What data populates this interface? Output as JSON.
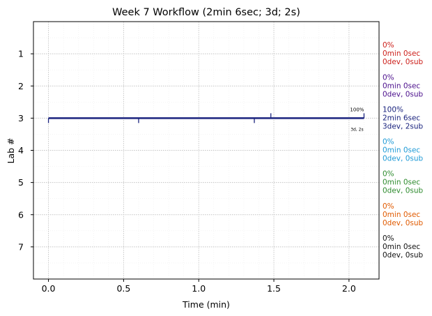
{
  "chart_data": {
    "type": "timeline",
    "title": "Week 7 Workflow (2min 6sec; 3d; 2s)",
    "xlabel": "Time (min)",
    "ylabel": "Lab #",
    "xlim": [
      -0.1,
      2.2
    ],
    "ylim": [
      8,
      0
    ],
    "x_ticks": [
      0.0,
      0.5,
      1.0,
      1.5,
      2.0
    ],
    "x_tick_labels": [
      "0.0",
      "0.5",
      "1.0",
      "1.5",
      "2.0"
    ],
    "y_ticks": [
      1,
      2,
      3,
      4,
      5,
      6,
      7
    ],
    "y_tick_labels": [
      "1",
      "2",
      "3",
      "4",
      "5",
      "6",
      "7"
    ],
    "grid": true,
    "legend_position": "right",
    "series": [
      {
        "lab": 1,
        "percent": "0%",
        "time": "0min 0sec",
        "counts": "0dev, 0sub",
        "color": "#cc1f1a"
      },
      {
        "lab": 2,
        "percent": "0%",
        "time": "0min 0sec",
        "counts": "0dev, 0sub",
        "color": "#4b0f8c"
      },
      {
        "lab": 3,
        "percent": "100%",
        "time": "2min 6sec",
        "counts": "3dev, 2sub",
        "color": "#1a237e"
      },
      {
        "lab": 4,
        "percent": "0%",
        "time": "0min 0sec",
        "counts": "0dev, 0sub",
        "color": "#1e9ad6"
      },
      {
        "lab": 5,
        "percent": "0%",
        "time": "0min 0sec",
        "counts": "0dev, 0sub",
        "color": "#2e8b2e"
      },
      {
        "lab": 6,
        "percent": "0%",
        "time": "0min 0sec",
        "counts": "0dev, 0sub",
        "color": "#e05a00"
      },
      {
        "lab": 7,
        "percent": "0%",
        "time": "0min 0sec",
        "counts": "0dev, 0sub",
        "color": "#111111"
      }
    ],
    "active_lab": {
      "lab": 3,
      "line_start": 0.0,
      "line_end": 2.1,
      "dev_marks": [
        0.0,
        0.6,
        1.37
      ],
      "sub_marks": [
        1.48,
        2.1
      ],
      "end_label_top": "100%",
      "end_label_bottom": "3d, 2s"
    }
  }
}
